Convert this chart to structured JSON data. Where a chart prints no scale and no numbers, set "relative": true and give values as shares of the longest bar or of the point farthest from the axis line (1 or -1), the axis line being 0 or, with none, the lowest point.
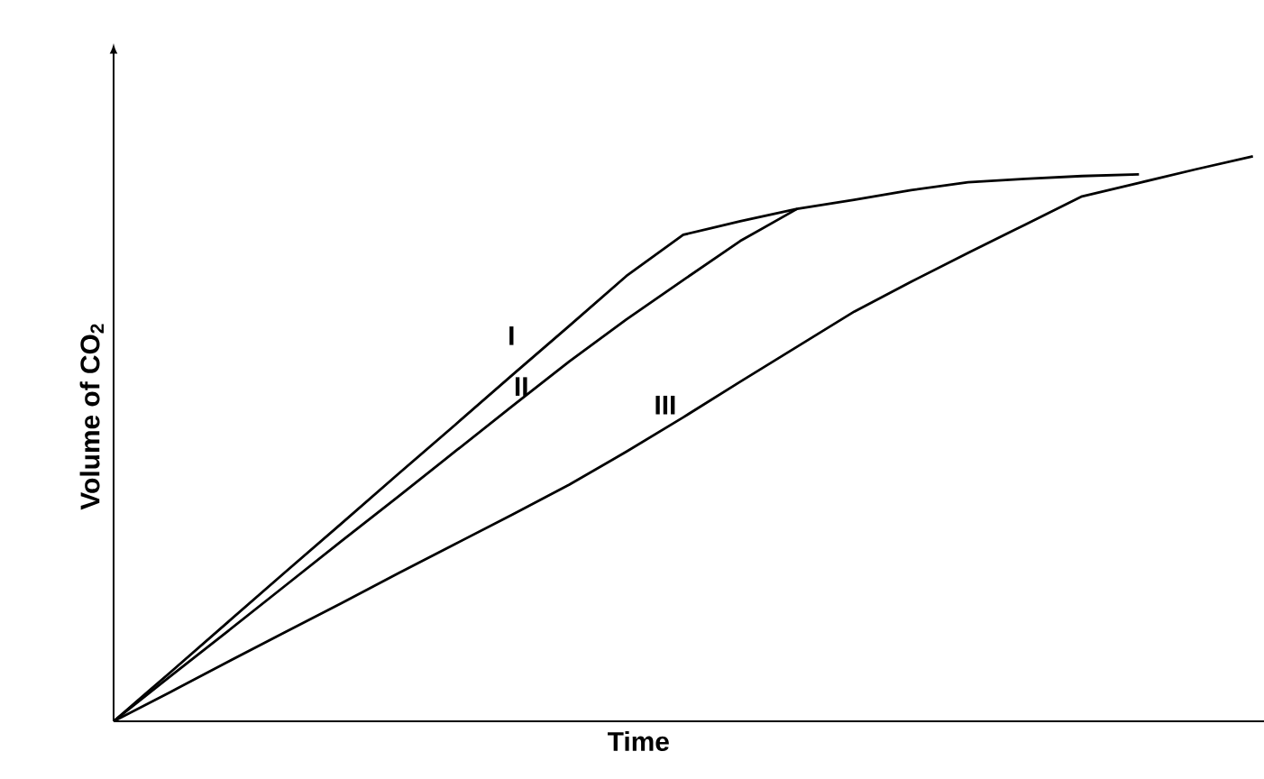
{
  "chart_data": {
    "type": "line",
    "relative": true,
    "xlabel": "Time",
    "ylabel": "Volume of CO$_{2}$",
    "marker": "none",
    "line_style": "solid",
    "categories": [
      null,
      null,
      null,
      null,
      null,
      null,
      null,
      null,
      null,
      null,
      null,
      null,
      null,
      null,
      null,
      null,
      null,
      null,
      null,
      null,
      null
    ],
    "series": [
      {
        "name": "I",
        "color": "#000000",
        "values": [
          0,
          0.087,
          0.175,
          0.263,
          0.35,
          0.438,
          0.525,
          0.613,
          0.7,
          0.788,
          0.861,
          0.885,
          0.907,
          0.923,
          0.94,
          0.954,
          0.96,
          0.965,
          0.968,
          null,
          null
        ]
      },
      {
        "name": "II",
        "color": "#000000",
        "values": [
          0,
          0.08,
          0.159,
          0.239,
          0.319,
          0.398,
          0.478,
          0.558,
          0.637,
          0.711,
          0.781,
          0.85,
          0.907,
          null,
          null,
          null,
          null,
          null,
          null,
          null,
          null
        ]
      },
      {
        "name": "III",
        "color": "#000000",
        "values": [
          0,
          0.052,
          0.105,
          0.157,
          0.209,
          0.262,
          0.314,
          0.366,
          0.419,
          0.477,
          0.538,
          0.601,
          0.663,
          0.725,
          0.778,
          0.829,
          0.879,
          0.929,
          0.953,
          0.977,
          1.0
        ]
      }
    ]
  }
}
